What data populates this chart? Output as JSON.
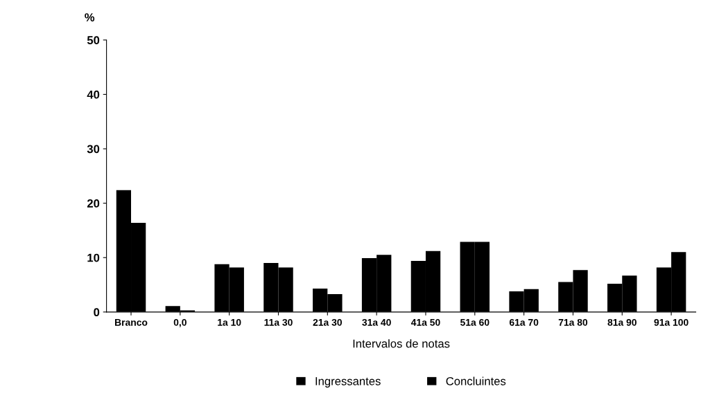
{
  "chart_data": {
    "type": "bar",
    "ylabel": "%",
    "xlabel": "Intervalos de notas",
    "categories": [
      "Branco",
      "0,0",
      "1a 10",
      "11a 30",
      "21a 30",
      "31a 40",
      "41a 50",
      "51a 60",
      "61a 70",
      "71a 80",
      "81a 90",
      "91a 100"
    ],
    "series": [
      {
        "name": "Ingressantes",
        "color": "#000000",
        "values": [
          22.4,
          1.1,
          8.8,
          9.0,
          4.3,
          9.9,
          9.4,
          12.9,
          3.8,
          5.5,
          5.2,
          8.2
        ]
      },
      {
        "name": "Concluintes",
        "color": "#000000",
        "values": [
          16.4,
          0.3,
          8.2,
          8.2,
          3.3,
          10.5,
          11.2,
          12.9,
          4.2,
          7.7,
          6.7,
          11.0
        ]
      }
    ],
    "ylim": [
      0,
      50
    ],
    "yticks": [
      0,
      10,
      20,
      30,
      40,
      50
    ],
    "grid": false,
    "legend": "bottom"
  }
}
